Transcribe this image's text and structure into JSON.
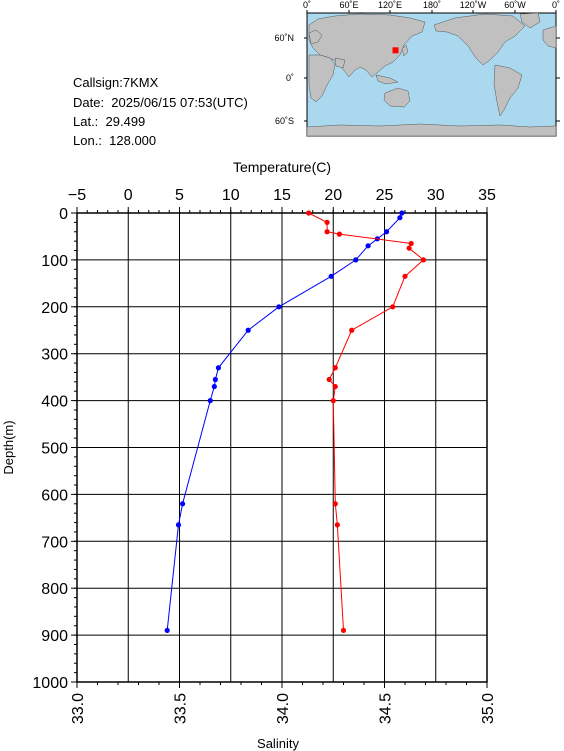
{
  "info": {
    "callsign": "Callsign:7KMX",
    "date": "Date:  2025/06/15 07:53(UTC)",
    "lat": "Lat.:  29.499",
    "lon": "Lon.:  128.000"
  },
  "map": {
    "top_labels": [
      "0˚",
      "60˚E",
      "120˚E",
      "180˚",
      "120˚W",
      "60˚W",
      "0˚"
    ],
    "right_labels": [
      "60˚N",
      "0˚",
      "60˚S"
    ],
    "ocean_color": "#aad8ee",
    "land_color": "#c0c0c0",
    "marker": {
      "lon": 128.0,
      "lat": 29.499,
      "color": "#ff0000"
    }
  },
  "chart_data": {
    "type": "line",
    "grid": true,
    "yaxis": {
      "label": "Depth(m)",
      "range": [
        0,
        1000
      ],
      "inverted": true,
      "ticks": [
        0,
        100,
        200,
        300,
        400,
        500,
        600,
        700,
        800,
        900,
        1000
      ]
    },
    "temperature_axis": {
      "label": "Temperature(C)",
      "position": "top",
      "range": [
        -5,
        35
      ],
      "ticks": [
        -5,
        0,
        5,
        10,
        15,
        20,
        25,
        30,
        35
      ]
    },
    "salinity_axis": {
      "label": "Salinity",
      "position": "bottom",
      "range": [
        33.0,
        35.0
      ],
      "ticks": [
        "33.0",
        "33.5",
        "34.0",
        "34.5",
        "35.0"
      ]
    },
    "series": [
      {
        "axis": "temperature",
        "color": "#0000ff",
        "depth": [
          0,
          10,
          40,
          55,
          70,
          100,
          135,
          200,
          250,
          330,
          355,
          370,
          400,
          620,
          665,
          890
        ],
        "values": [
          26.7,
          26.5,
          25.2,
          24.3,
          23.4,
          22.2,
          19.8,
          14.7,
          11.7,
          8.8,
          8.5,
          8.4,
          8.0,
          5.3,
          4.9,
          3.8
        ]
      },
      {
        "axis": "salinity",
        "color": "#ff0000",
        "depth": [
          0,
          20,
          40,
          45,
          65,
          75,
          100,
          135,
          200,
          250,
          330,
          355,
          370,
          400,
          620,
          665,
          890
        ],
        "values": [
          34.13,
          34.22,
          34.22,
          34.28,
          34.63,
          34.62,
          34.69,
          34.6,
          34.54,
          34.34,
          34.26,
          34.23,
          34.26,
          34.25,
          34.26,
          34.27,
          34.3
        ]
      }
    ]
  }
}
